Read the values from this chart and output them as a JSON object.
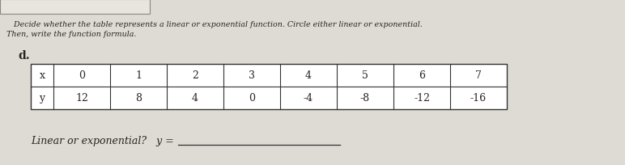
{
  "header_line1": "   Decide whether the table represents a linear or exponential function. Circle either linear or exponential.",
  "header_line2": "Then, write the function formula.",
  "label": "d.",
  "x_values": [
    "x",
    "0",
    "1",
    "2",
    "3",
    "4",
    "5",
    "6",
    "7"
  ],
  "y_values": [
    "y",
    "12",
    "8",
    "4",
    "0",
    "-4",
    "-8",
    "-12",
    "-16"
  ],
  "footer_label": "Linear or exponential?   y =",
  "bg_color": "#ccc8c0",
  "paper_color": "#dedad4",
  "table_bg": "#e8e4de",
  "text_color": "#2a2520",
  "line_color": "#333333"
}
